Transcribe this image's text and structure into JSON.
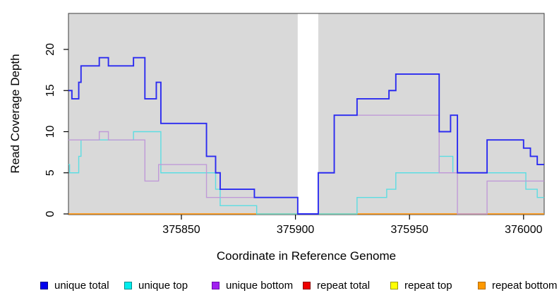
{
  "chart_data": {
    "type": "line",
    "subtype": "step",
    "title": "",
    "xlabel": "Coordinate in Reference Genome",
    "ylabel": "Read Coverage Depth",
    "xlim": [
      375800,
      376009
    ],
    "ylim": [
      0,
      24.4
    ],
    "grid": "off",
    "legend_position": "bottom",
    "panel_bg": "#d9d9d9",
    "panel_border": "#3c3c3c",
    "x_ticks": [
      {
        "value": 375850,
        "label": "375850"
      },
      {
        "value": 375900,
        "label": "375900"
      },
      {
        "value": 375950,
        "label": "375950"
      },
      {
        "value": 376000,
        "label": "376000"
      }
    ],
    "y_ticks": [
      {
        "value": 0,
        "label": "0"
      },
      {
        "value": 5,
        "label": "5"
      },
      {
        "value": 10,
        "label": "10"
      },
      {
        "value": 15,
        "label": "15"
      },
      {
        "value": 20,
        "label": "20"
      }
    ],
    "gap": {
      "x_start": 375901,
      "x_end": 375910
    },
    "series": [
      {
        "name": "unique total",
        "line_color": "#2b2bf0",
        "legend_fill": "#0000ee",
        "legend_border": "#00008b",
        "width": 1.9,
        "z": 6,
        "segments": [
          [
            [
              375800,
              15
            ],
            [
              375802,
              14
            ],
            [
              375805,
              16
            ],
            [
              375806,
              18
            ],
            [
              375814,
              19
            ],
            [
              375818,
              18
            ],
            [
              375829,
              19
            ],
            [
              375834,
              14
            ],
            [
              375839,
              16
            ],
            [
              375841,
              11
            ],
            [
              375861,
              7
            ],
            [
              375865,
              5
            ],
            [
              375867,
              3
            ],
            [
              375882,
              2
            ],
            [
              375901,
              0
            ],
            [
              375910,
              5
            ],
            [
              375917,
              12
            ],
            [
              375927,
              14
            ],
            [
              375941,
              15
            ],
            [
              375944,
              17
            ],
            [
              375963,
              10
            ],
            [
              375968,
              12
            ],
            [
              375971,
              5
            ],
            [
              375984,
              9
            ],
            [
              376000,
              8
            ],
            [
              376003,
              7
            ],
            [
              376006,
              6
            ],
            [
              376009,
              6
            ]
          ]
        ]
      },
      {
        "name": "unique top",
        "line_color": "#5cdde2",
        "legend_fill": "#00eeee",
        "legend_border": "#008b8b",
        "width": 1.4,
        "z": 4,
        "segments": [
          [
            [
              375800,
              6
            ],
            [
              375801,
              5
            ],
            [
              375805,
              7
            ],
            [
              375806,
              9
            ],
            [
              375829,
              10
            ],
            [
              375841,
              5
            ],
            [
              375865,
              3
            ],
            [
              375867,
              1
            ],
            [
              375883,
              0
            ],
            [
              375901,
              0
            ]
          ],
          [
            [
              375910,
              0
            ],
            [
              375927,
              2
            ],
            [
              375940,
              3
            ],
            [
              375944,
              5
            ],
            [
              375963,
              7
            ],
            [
              375969,
              5
            ],
            [
              376001,
              3
            ],
            [
              376006,
              2
            ],
            [
              376009,
              2
            ]
          ]
        ]
      },
      {
        "name": "unique bottom",
        "line_color": "#c09ad8",
        "legend_fill": "#a020f0",
        "legend_border": "#6a0dad",
        "width": 1.4,
        "z": 5,
        "segments": [
          [
            [
              375800,
              9
            ],
            [
              375814,
              10
            ],
            [
              375818,
              9
            ],
            [
              375834,
              4
            ],
            [
              375840,
              6
            ],
            [
              375861,
              2
            ],
            [
              375901,
              2
            ]
          ],
          [
            [
              375910,
              5
            ],
            [
              375917,
              12
            ],
            [
              375963,
              5
            ],
            [
              375971,
              0
            ],
            [
              375984,
              4
            ],
            [
              376009,
              4
            ]
          ]
        ]
      },
      {
        "name": "repeat total",
        "line_color": "#e02020",
        "legend_fill": "#ee0000",
        "legend_border": "#8b0000",
        "width": 1.3,
        "z": 1,
        "segments": [
          [
            [
              375800,
              0
            ],
            [
              375901,
              0
            ]
          ],
          [
            [
              375910,
              0
            ],
            [
              376009,
              0
            ]
          ]
        ]
      },
      {
        "name": "repeat top",
        "line_color": "#f0f000",
        "legend_fill": "#ffff00",
        "legend_border": "#999900",
        "width": 1.3,
        "z": 2,
        "segments": [
          [
            [
              375800,
              0
            ],
            [
              375901,
              0
            ]
          ],
          [
            [
              375910,
              0
            ],
            [
              376009,
              0
            ]
          ]
        ]
      },
      {
        "name": "repeat bottom",
        "line_color": "#ff9514",
        "legend_fill": "#ff9900",
        "legend_border": "#b36b00",
        "width": 1.6,
        "z": 3,
        "segments": [
          [
            [
              375800,
              0
            ],
            [
              375901,
              0
            ]
          ],
          [
            [
              375910,
              0
            ],
            [
              376009,
              0
            ]
          ]
        ]
      }
    ]
  },
  "legend": {
    "item_x": [
      57,
      176,
      300,
      429,
      553,
      677
    ]
  }
}
